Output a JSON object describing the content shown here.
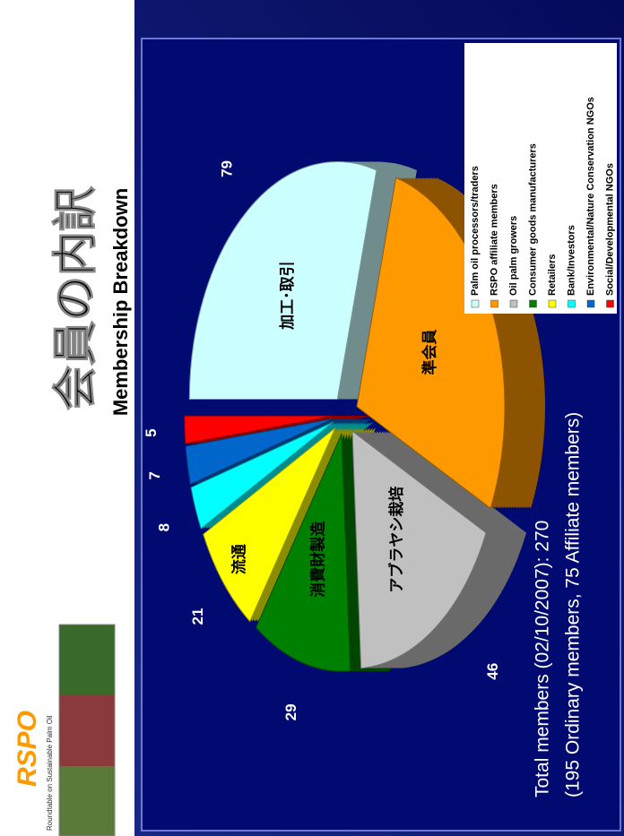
{
  "header": {
    "logo": "RSPO",
    "logo_subtitle": "Roundtable on Sustainable Palm Oil"
  },
  "chart_data": {
    "type": "pie",
    "title": "会員の内訳",
    "subtitle": "Membership Breakdown",
    "categories": [
      "Palm oil processors/traders",
      "RSPO affiliate members",
      "Oil palm growers",
      "Consumer goods manufacturers",
      "Retailers",
      "Bank/Investors",
      "Environmental/Nature Conservation NGOs",
      "Social/Developmental NGOs"
    ],
    "values": [
      79,
      75,
      46,
      29,
      21,
      8,
      7,
      5
    ],
    "slice_labels": [
      "加工･取引",
      "準会員",
      "アブラヤシ栽培",
      "消費財製造",
      "流通",
      null,
      null,
      null
    ],
    "colors": [
      "#ccffff",
      "#ff9900",
      "#c0c0c0",
      "#008000",
      "#ffff00",
      "#00ffff",
      "#0066cc",
      "#ff0000"
    ],
    "legend": "right",
    "notes": [
      "Total members (02/10/2007): 270",
      "(195 Ordinary members, 75 Affiliate members)"
    ]
  }
}
